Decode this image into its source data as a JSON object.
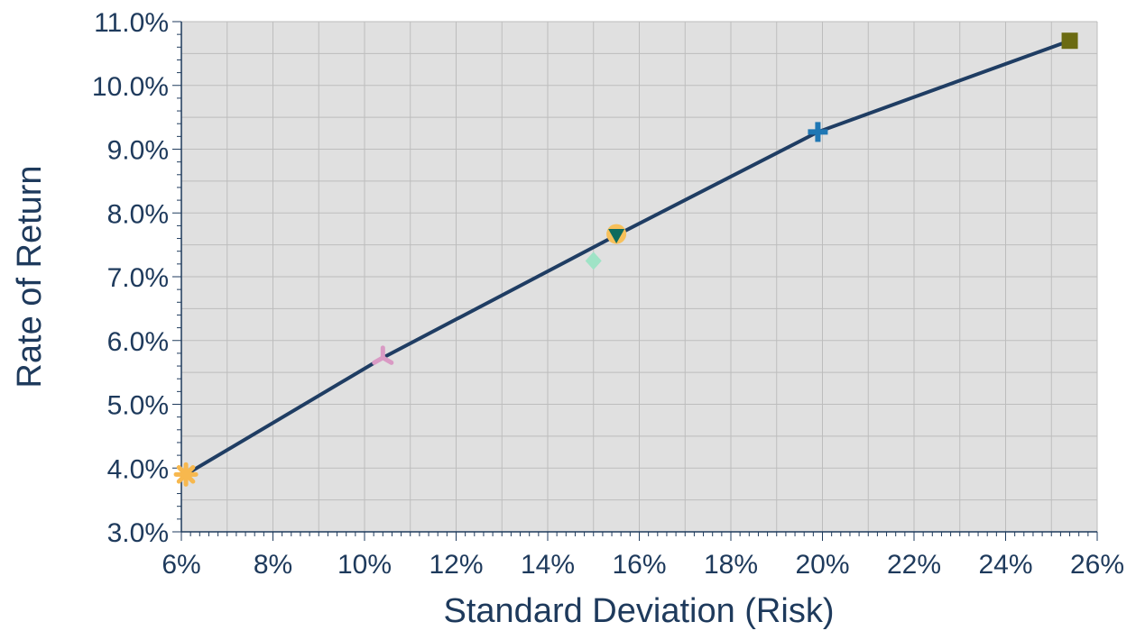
{
  "chart_data": {
    "type": "scatter",
    "title": "",
    "xlabel": "Standard Deviation (Risk)",
    "ylabel": "Rate of Return",
    "xlim": [
      6,
      26
    ],
    "ylim": [
      3.0,
      11.0
    ],
    "x_ticks": [
      6,
      8,
      10,
      12,
      14,
      16,
      18,
      20,
      22,
      24,
      26
    ],
    "x_tick_labels": [
      "6%",
      "8%",
      "10%",
      "12%",
      "14%",
      "16%",
      "18%",
      "20%",
      "22%",
      "24%",
      "26%"
    ],
    "y_ticks": [
      3,
      4,
      5,
      6,
      7,
      8,
      9,
      10,
      11
    ],
    "y_tick_labels": [
      "3.0%",
      "4.0%",
      "5.0%",
      "6.0%",
      "7.0%",
      "8.0%",
      "9.0%",
      "10.0%",
      "11.0%"
    ],
    "grid": true,
    "plot_background": "#e0e0e0",
    "line_color": "#1f3d63",
    "frontier": {
      "x": [
        6.1,
        10.4,
        15.5,
        19.9,
        25.4
      ],
      "y": [
        3.9,
        5.73,
        7.65,
        9.27,
        10.7
      ]
    },
    "points": [
      {
        "x": 6.1,
        "y": 3.9,
        "marker": "asterisk",
        "color": "#f7b84e"
      },
      {
        "x": 10.4,
        "y": 5.73,
        "marker": "tri-down",
        "color": "#d99ac4"
      },
      {
        "x": 15.0,
        "y": 7.25,
        "marker": "diamond",
        "color": "#9fe3c6"
      },
      {
        "x": 15.5,
        "y": 7.67,
        "marker": "circle",
        "color": "#f7c05a"
      },
      {
        "x": 15.5,
        "y": 7.65,
        "marker": "triangle-down",
        "color": "#0e6b5e"
      },
      {
        "x": 19.9,
        "y": 9.27,
        "marker": "plus",
        "color": "#1f77b4"
      },
      {
        "x": 25.4,
        "y": 10.7,
        "marker": "square",
        "color": "#6b6b12"
      }
    ]
  }
}
